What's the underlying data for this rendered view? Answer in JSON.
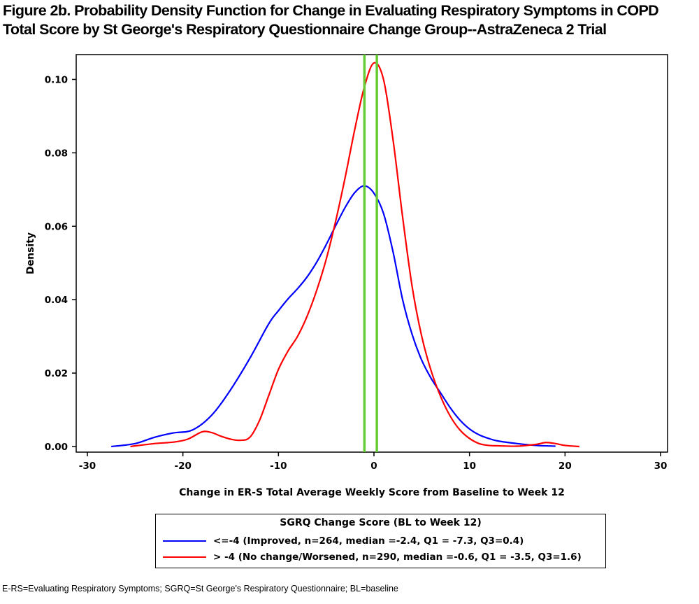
{
  "figure": {
    "title_line1": "Figure 2b. Probability Density Function for Change in Evaluating Respiratory Symptoms in COPD",
    "title_line2": "Total Score by St George's Respiratory Questionnaire Change Group--AstraZeneca 2 Trial",
    "footnote": "E-RS=Evaluating Respiratory Symptoms; SGRQ=St George's Respiratory Questionnaire; BL=baseline"
  },
  "chart_data": {
    "type": "line",
    "title": "Figure 2b. Probability Density Function for Change in Evaluating Respiratory Symptoms in COPD Total Score by St George's Respiratory Questionnaire Change Group--AstraZeneca 2 Trial",
    "xlabel": "Change in ER-S Total Average Weekly Score from Baseline to Week 12",
    "ylabel": "Density",
    "xlim": [
      -30,
      30
    ],
    "ylim": [
      0,
      0.106
    ],
    "xticks": [
      -30,
      -20,
      -10,
      0,
      10,
      20,
      30
    ],
    "yticks": [
      0.0,
      0.02,
      0.04,
      0.06,
      0.08,
      0.1
    ],
    "xtick_labels": [
      "-30",
      "-20",
      "-10",
      "0",
      "10",
      "20",
      "30"
    ],
    "ytick_labels": [
      "0.00",
      "0.02",
      "0.04",
      "0.06",
      "0.08",
      "0.10"
    ],
    "grid": false,
    "legend_title": "SGRQ Change Score (BL to Week 12)",
    "legend_position": "below",
    "series": [
      {
        "name": "<=-4 (Improved, n=264, median =-2.4, Q1 = -7.3, Q3=0.4)",
        "color": "#0000ff",
        "x": [
          -27.5,
          -25,
          -23,
          -21,
          -19,
          -17,
          -15,
          -13,
          -11,
          -10,
          -9,
          -8,
          -7,
          -6,
          -5,
          -4,
          -3,
          -2,
          -1,
          0,
          1,
          2,
          3,
          4,
          5,
          6,
          7,
          8,
          9,
          10,
          11,
          12,
          13,
          15,
          17,
          19
        ],
        "y": [
          0.0,
          0.0008,
          0.0025,
          0.0037,
          0.0045,
          0.0085,
          0.0155,
          0.024,
          0.0335,
          0.037,
          0.0402,
          0.043,
          0.0462,
          0.0502,
          0.055,
          0.0602,
          0.0652,
          0.0692,
          0.071,
          0.069,
          0.0635,
          0.053,
          0.04,
          0.0305,
          0.0235,
          0.0185,
          0.0145,
          0.0105,
          0.0072,
          0.0048,
          0.0032,
          0.0022,
          0.0015,
          0.0008,
          0.0003,
          0.0001
        ]
      },
      {
        "name": "> -4 (No change/Worsened, n=290, median =-0.6, Q1 = -3.5, Q3=1.6)",
        "color": "#ff0000",
        "x": [
          -25.5,
          -23,
          -21,
          -19.5,
          -18,
          -17,
          -16,
          -15,
          -14,
          -13,
          -12,
          -11,
          -10,
          -9,
          -8,
          -7,
          -6,
          -5,
          -4,
          -3,
          -2,
          -1,
          0,
          1,
          2,
          3,
          4,
          5,
          6,
          7,
          8,
          9,
          10,
          11,
          12,
          13,
          15,
          17,
          18,
          19,
          20,
          21.5
        ],
        "y": [
          0.0,
          0.0008,
          0.0012,
          0.002,
          0.004,
          0.0038,
          0.0028,
          0.002,
          0.0017,
          0.0025,
          0.007,
          0.014,
          0.021,
          0.026,
          0.03,
          0.0355,
          0.0425,
          0.051,
          0.0615,
          0.0735,
          0.0865,
          0.098,
          0.1045,
          0.1,
          0.0835,
          0.0625,
          0.0435,
          0.03,
          0.0205,
          0.0135,
          0.0082,
          0.0045,
          0.0022,
          0.0008,
          0.0003,
          0.0002,
          0.0001,
          0.0006,
          0.0011,
          0.0008,
          0.0003,
          0.0
        ]
      }
    ],
    "vertical_lines": [
      {
        "x": -1.0,
        "color": "#66cc33"
      },
      {
        "x": 0.3,
        "color": "#66cc33"
      }
    ]
  }
}
